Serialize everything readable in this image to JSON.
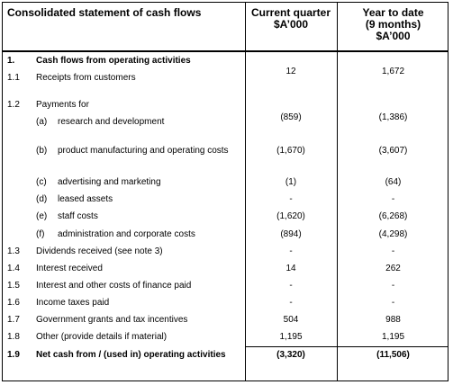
{
  "header": {
    "title": "Consolidated statement of cash flows",
    "current": [
      "Current quarter",
      "$A’000"
    ],
    "ytd": [
      "Year to date",
      "(9 months)",
      "$A’000"
    ]
  },
  "table": {
    "rows": [
      {
        "no": "1.",
        "label": "Cash flows from operating activities",
        "bold": true
      },
      {
        "no": "1.1",
        "label": "Receipts from customers",
        "current": "12",
        "ytd": "1,672"
      },
      {
        "no": "1.2",
        "label": "Payments for"
      },
      {
        "sub": "(a)",
        "label": "research and development",
        "current": "(859)",
        "ytd": "(1,386)"
      },
      {
        "sub": "(b)",
        "label": "product manufacturing and operating costs",
        "current": "(1,670)",
        "ytd": "(3,607)"
      },
      {
        "sub": "(c)",
        "label": "advertising and marketing",
        "current": "(1)",
        "ytd": "(64)"
      },
      {
        "sub": "(d)",
        "label": "leased assets",
        "current": "-",
        "ytd": "-"
      },
      {
        "sub": "(e)",
        "label": "staff costs",
        "current": "(1,620)",
        "ytd": "(6,268)"
      },
      {
        "sub": "(f)",
        "label": "administration and corporate costs",
        "current": "(894)",
        "ytd": "(4,298)"
      },
      {
        "no": "1.3",
        "label": "Dividends received (see note 3)",
        "current": "-",
        "ytd": "-"
      },
      {
        "no": "1.4",
        "label": "Interest received",
        "current": "14",
        "ytd": "262"
      },
      {
        "no": "1.5",
        "label": "Interest and other costs of finance paid",
        "current": "-",
        "ytd": "-"
      },
      {
        "no": "1.6",
        "label": "Income taxes paid",
        "current": "-",
        "ytd": "-"
      },
      {
        "no": "1.7",
        "label": "Government grants and tax incentives",
        "current": "504",
        "ytd": "988"
      },
      {
        "no": "1.8",
        "label": "Other (provide details if material)",
        "current": "1,195",
        "ytd": "1,195"
      },
      {
        "no": "1.9",
        "label": "Net cash from / (used in) operating activities",
        "current": "(3,320)",
        "ytd": "(11,506)",
        "bold": true
      }
    ]
  }
}
